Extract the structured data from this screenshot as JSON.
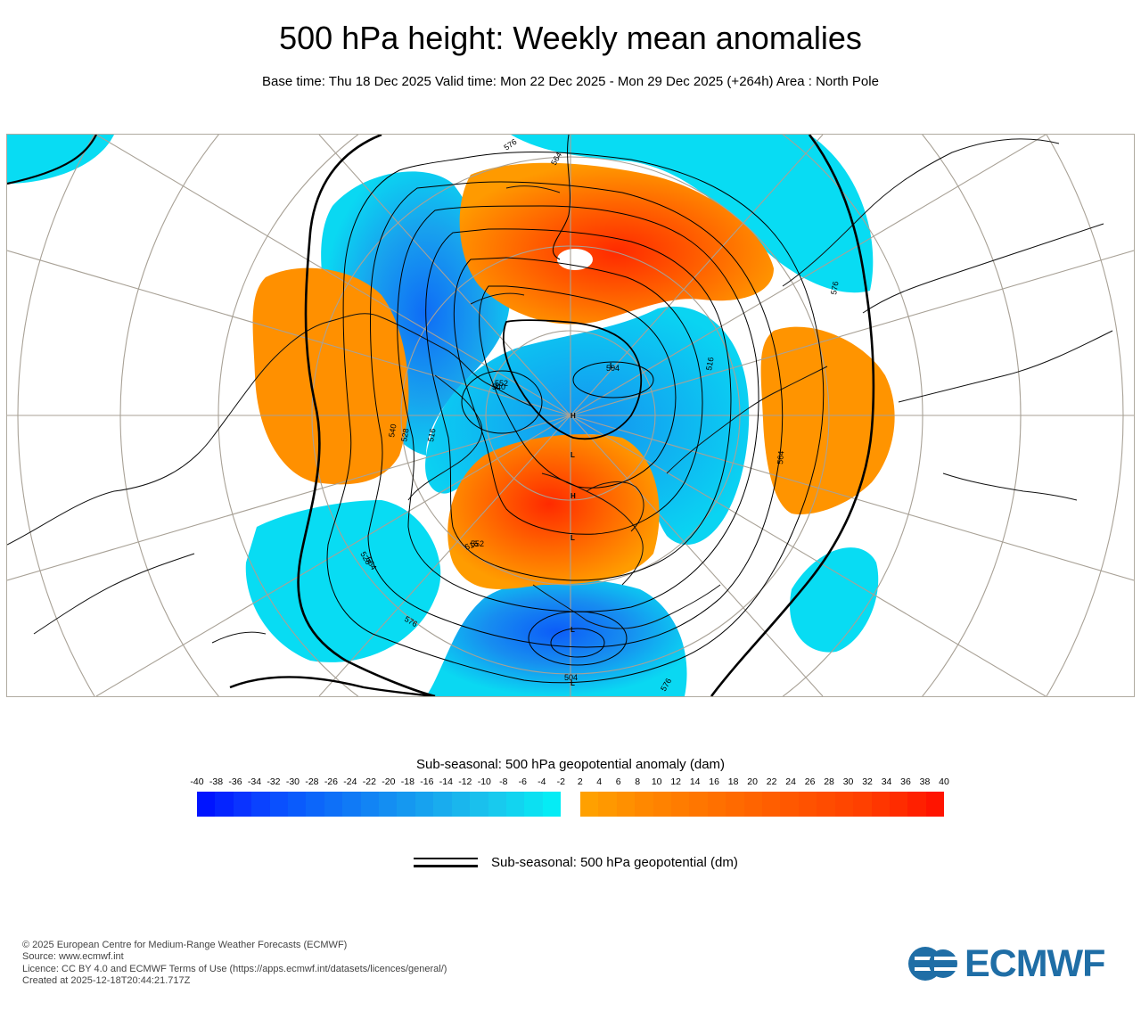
{
  "header": {
    "title": "500 hPa height: Weekly mean anomalies",
    "subtitle": "Base time: Thu 18 Dec 2025 Valid time: Mon 22 Dec 2025 - Mon 29 Dec 2025 (+264h) Area : North Pole"
  },
  "map": {
    "contour_labels": [
      "576",
      "564",
      "552",
      "540",
      "528",
      "516",
      "504",
      "516",
      "528",
      "540",
      "552",
      "564",
      "576",
      "564",
      "576",
      "516",
      "504",
      "576"
    ],
    "pressure_system_labels": [
      "H",
      "L",
      "L",
      "L",
      "L",
      "L",
      "H",
      "L"
    ]
  },
  "colorbar": {
    "title": "Sub-seasonal: 500 hPa geopotential anomaly (dam)",
    "labels": [
      "-40",
      "-38",
      "-36",
      "-34",
      "-32",
      "-30",
      "-28",
      "-26",
      "-24",
      "-22",
      "-20",
      "-18",
      "-16",
      "-14",
      "-12",
      "-10",
      "-8",
      "-6",
      "-4",
      "-2",
      "2",
      "4",
      "6",
      "8",
      "10",
      "12",
      "14",
      "16",
      "18",
      "20",
      "22",
      "24",
      "26",
      "28",
      "30",
      "32",
      "34",
      "36",
      "38",
      "40"
    ],
    "negative_colors": [
      "#0014ff",
      "#0524ff",
      "#0a33ff",
      "#0a42ff",
      "#0a50fe",
      "#0a5bfc",
      "#0c66fa",
      "#0e70f8",
      "#107af6",
      "#1284f4",
      "#148ef2",
      "#1598f0",
      "#17a2ef",
      "#19acee",
      "#1ab6ed",
      "#1ac0ed",
      "#18caee",
      "#12d4f0",
      "#0ce0f2",
      "#05ecf5"
    ],
    "positive_colors": [
      "#ffa000",
      "#ff9800",
      "#ff9000",
      "#ff8800",
      "#ff8200",
      "#ff7c00",
      "#ff7600",
      "#ff7000",
      "#ff6a00",
      "#ff6400",
      "#ff5e00",
      "#ff5800",
      "#ff5200",
      "#ff4c00",
      "#ff4600",
      "#ff4000",
      "#ff3600",
      "#ff2c00",
      "#ff2000",
      "#ff1400"
    ]
  },
  "legend": {
    "contour_label": "Sub-seasonal: 500 hPa geopotential (dm)"
  },
  "footer": {
    "copyright": "© 2025 European Centre for Medium-Range Weather Forecasts (ECMWF)",
    "source": "Source: www.ecmwf.int",
    "licence": "Licence: CC BY 4.0 and ECMWF Terms of Use (https://apps.ecmwf.int/datasets/licences/general/)",
    "created": "Created at 2025-12-18T20:44:21.717Z"
  },
  "logo": {
    "text": "ECMWF",
    "color": "#1f6ea6"
  }
}
